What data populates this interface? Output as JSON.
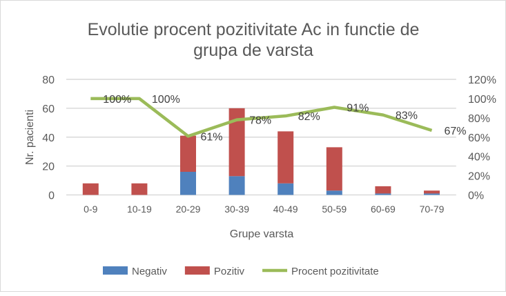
{
  "chart_data": {
    "type": "bar",
    "title_lines": [
      "Evolutie procent pozitivitate Ac in functie de",
      "grupa de varsta"
    ],
    "xlabel": "Grupe varsta",
    "ylabel": "Nr. pacienti",
    "ylim": [
      0,
      80
    ],
    "y_ticks": [
      "0",
      "20",
      "40",
      "60",
      "80"
    ],
    "y2lim": [
      0,
      1.2
    ],
    "y2_ticks": [
      "0%",
      "20%",
      "40%",
      "60%",
      "80%",
      "100%",
      "120%"
    ],
    "categories": [
      "0-9",
      "10-19",
      "20-29",
      "30-39",
      "40-49",
      "50-59",
      "60-69",
      "70-79"
    ],
    "series": [
      {
        "name": "Negativ",
        "type": "stacked-bar",
        "color": "#4f81bd",
        "values": [
          0,
          0,
          16,
          13,
          8,
          3,
          1,
          1
        ]
      },
      {
        "name": "Pozitiv",
        "type": "stacked-bar",
        "color": "#c0504d",
        "values": [
          8,
          8,
          25,
          47,
          36,
          30,
          5,
          2
        ]
      },
      {
        "name": "Procent pozitivitate",
        "type": "line",
        "axis": "right",
        "color": "#9bbb59",
        "values": [
          1.0,
          1.0,
          0.61,
          0.78,
          0.82,
          0.91,
          0.83,
          0.67
        ],
        "labels": [
          "100%",
          "100%",
          "61%",
          "78%",
          "82%",
          "91%",
          "83%",
          "67%"
        ]
      }
    ],
    "grid": true,
    "legend_position": "bottom"
  }
}
